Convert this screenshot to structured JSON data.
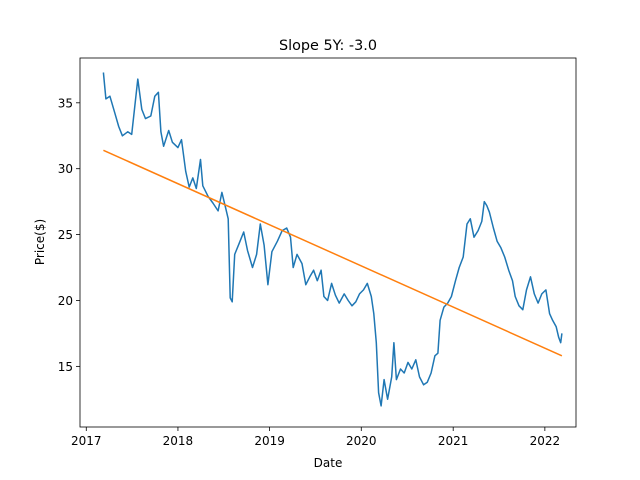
{
  "chart_data": {
    "type": "line",
    "title": "Slope 5Y: -3.0",
    "xlabel": "Date",
    "ylabel": "Price($)",
    "xlim": [
      "2016-12-07",
      "2022-05-05"
    ],
    "ylim": [
      10.4,
      38.4
    ],
    "x_ticks": [
      {
        "date": "2017-01-01",
        "label": "2017"
      },
      {
        "date": "2018-01-01",
        "label": "2018"
      },
      {
        "date": "2019-01-01",
        "label": "2019"
      },
      {
        "date": "2020-01-01",
        "label": "2020"
      },
      {
        "date": "2021-01-01",
        "label": "2021"
      },
      {
        "date": "2022-01-01",
        "label": "2022"
      }
    ],
    "y_ticks": [
      15,
      20,
      25,
      30,
      35
    ],
    "grid": false,
    "series": [
      {
        "color": "#1f77b4",
        "points": [
          [
            "2017-03-10",
            37.3
          ],
          [
            "2017-03-20",
            35.3
          ],
          [
            "2017-04-05",
            35.5
          ],
          [
            "2017-04-25",
            34.2
          ],
          [
            "2017-05-10",
            33.2
          ],
          [
            "2017-05-25",
            32.5
          ],
          [
            "2017-06-15",
            32.8
          ],
          [
            "2017-07-01",
            32.6
          ],
          [
            "2017-07-25",
            36.8
          ],
          [
            "2017-08-10",
            34.5
          ],
          [
            "2017-08-25",
            33.8
          ],
          [
            "2017-09-15",
            34.0
          ],
          [
            "2017-10-01",
            35.5
          ],
          [
            "2017-10-15",
            35.8
          ],
          [
            "2017-10-25",
            32.8
          ],
          [
            "2017-11-05",
            31.7
          ],
          [
            "2017-11-25",
            32.9
          ],
          [
            "2017-12-10",
            32.0
          ],
          [
            "2018-01-01",
            31.6
          ],
          [
            "2018-01-15",
            32.2
          ],
          [
            "2018-02-01",
            29.8
          ],
          [
            "2018-02-15",
            28.6
          ],
          [
            "2018-03-01",
            29.3
          ],
          [
            "2018-03-15",
            28.5
          ],
          [
            "2018-04-01",
            30.7
          ],
          [
            "2018-04-10",
            28.7
          ],
          [
            "2018-05-01",
            27.9
          ],
          [
            "2018-05-20",
            27.4
          ],
          [
            "2018-06-10",
            26.8
          ],
          [
            "2018-06-25",
            28.2
          ],
          [
            "2018-07-10",
            27.0
          ],
          [
            "2018-07-20",
            26.2
          ],
          [
            "2018-07-28",
            20.2
          ],
          [
            "2018-08-05",
            19.9
          ],
          [
            "2018-08-15",
            23.5
          ],
          [
            "2018-09-01",
            24.3
          ],
          [
            "2018-09-20",
            25.2
          ],
          [
            "2018-10-05",
            23.8
          ],
          [
            "2018-10-25",
            22.5
          ],
          [
            "2018-11-10",
            23.5
          ],
          [
            "2018-11-25",
            25.8
          ],
          [
            "2018-12-10",
            24.2
          ],
          [
            "2018-12-25",
            21.2
          ],
          [
            "2019-01-10",
            23.7
          ],
          [
            "2019-02-01",
            24.5
          ],
          [
            "2019-02-20",
            25.3
          ],
          [
            "2019-03-10",
            25.5
          ],
          [
            "2019-03-25",
            24.8
          ],
          [
            "2019-04-05",
            22.5
          ],
          [
            "2019-04-20",
            23.5
          ],
          [
            "2019-05-10",
            22.8
          ],
          [
            "2019-05-25",
            21.2
          ],
          [
            "2019-06-10",
            21.8
          ],
          [
            "2019-06-25",
            22.3
          ],
          [
            "2019-07-10",
            21.5
          ],
          [
            "2019-07-25",
            22.3
          ],
          [
            "2019-08-05",
            20.3
          ],
          [
            "2019-08-20",
            20.0
          ],
          [
            "2019-09-05",
            21.3
          ],
          [
            "2019-09-20",
            20.4
          ],
          [
            "2019-10-05",
            19.8
          ],
          [
            "2019-10-25",
            20.5
          ],
          [
            "2019-11-10",
            20.0
          ],
          [
            "2019-11-25",
            19.6
          ],
          [
            "2019-12-10",
            19.9
          ],
          [
            "2019-12-25",
            20.5
          ],
          [
            "2020-01-10",
            20.8
          ],
          [
            "2020-01-25",
            21.3
          ],
          [
            "2020-02-10",
            20.3
          ],
          [
            "2020-02-20",
            19.0
          ],
          [
            "2020-03-01",
            16.8
          ],
          [
            "2020-03-10",
            13.0
          ],
          [
            "2020-03-20",
            12.0
          ],
          [
            "2020-04-01",
            14.0
          ],
          [
            "2020-04-15",
            12.5
          ],
          [
            "2020-05-01",
            14.2
          ],
          [
            "2020-05-10",
            16.8
          ],
          [
            "2020-05-20",
            14.0
          ],
          [
            "2020-06-05",
            14.8
          ],
          [
            "2020-06-20",
            14.5
          ],
          [
            "2020-07-05",
            15.3
          ],
          [
            "2020-07-20",
            14.8
          ],
          [
            "2020-08-05",
            15.5
          ],
          [
            "2020-08-20",
            14.2
          ],
          [
            "2020-09-05",
            13.6
          ],
          [
            "2020-09-20",
            13.8
          ],
          [
            "2020-10-05",
            14.5
          ],
          [
            "2020-10-20",
            15.8
          ],
          [
            "2020-11-01",
            16.0
          ],
          [
            "2020-11-10",
            18.5
          ],
          [
            "2020-11-25",
            19.5
          ],
          [
            "2020-12-10",
            19.8
          ],
          [
            "2020-12-25",
            20.3
          ],
          [
            "2021-01-10",
            21.5
          ],
          [
            "2021-01-25",
            22.5
          ],
          [
            "2021-02-10",
            23.3
          ],
          [
            "2021-02-25",
            25.8
          ],
          [
            "2021-03-10",
            26.2
          ],
          [
            "2021-03-25",
            24.8
          ],
          [
            "2021-04-10",
            25.3
          ],
          [
            "2021-04-25",
            26.0
          ],
          [
            "2021-05-05",
            27.5
          ],
          [
            "2021-05-15",
            27.2
          ],
          [
            "2021-05-25",
            26.7
          ],
          [
            "2021-06-10",
            25.5
          ],
          [
            "2021-06-25",
            24.5
          ],
          [
            "2021-07-10",
            24.0
          ],
          [
            "2021-07-25",
            23.3
          ],
          [
            "2021-08-10",
            22.3
          ],
          [
            "2021-08-25",
            21.5
          ],
          [
            "2021-09-05",
            20.3
          ],
          [
            "2021-09-20",
            19.6
          ],
          [
            "2021-10-05",
            19.3
          ],
          [
            "2021-10-20",
            20.8
          ],
          [
            "2021-11-05",
            21.8
          ],
          [
            "2021-11-20",
            20.5
          ],
          [
            "2021-12-05",
            19.8
          ],
          [
            "2021-12-20",
            20.5
          ],
          [
            "2022-01-05",
            20.8
          ],
          [
            "2022-01-20",
            19.0
          ],
          [
            "2022-02-01",
            18.5
          ],
          [
            "2022-02-15",
            18.0
          ],
          [
            "2022-02-25",
            17.2
          ],
          [
            "2022-03-05",
            16.8
          ],
          [
            "2022-03-10",
            17.5
          ]
        ]
      },
      {
        "color": "#ff7f0e",
        "points": [
          [
            "2017-03-10",
            31.4
          ],
          [
            "2022-03-10",
            15.8
          ]
        ]
      }
    ]
  }
}
